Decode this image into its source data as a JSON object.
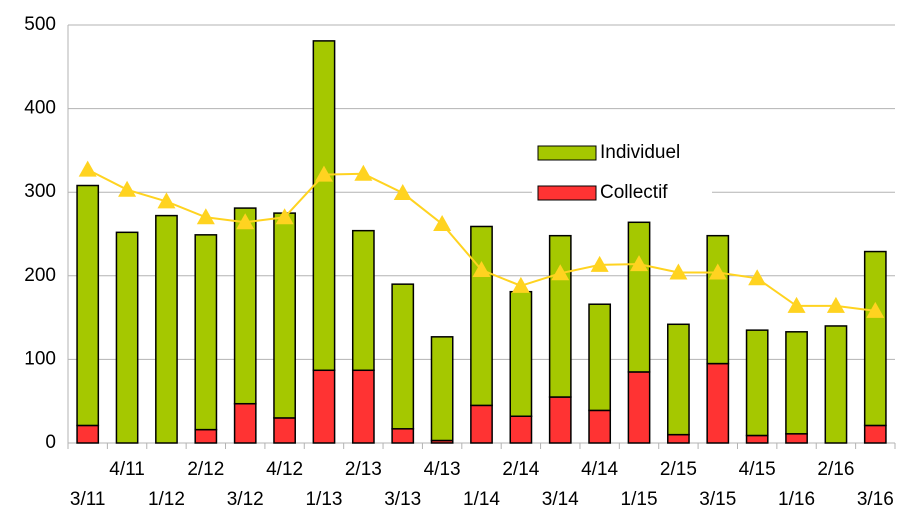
{
  "chart_data": {
    "type": "bar",
    "categories": [
      "3/11",
      "4/11",
      "1/12",
      "2/12",
      "3/12",
      "4/12",
      "1/13",
      "2/13",
      "3/13",
      "4/13",
      "1/14",
      "2/14",
      "3/14",
      "4/14",
      "1/15",
      "2/15",
      "3/15",
      "4/15",
      "1/16",
      "2/16",
      "3/16"
    ],
    "series": [
      {
        "name": "Individuel",
        "type": "bar",
        "color": "#a5c800",
        "values": [
          287,
          252,
          272,
          233,
          234,
          245,
          394,
          167,
          173,
          124,
          214,
          149,
          193,
          127,
          179,
          132,
          153,
          126,
          122,
          140,
          208
        ]
      },
      {
        "name": "Collectif",
        "type": "bar",
        "color": "#ff3333",
        "values": [
          21,
          0,
          0,
          16,
          47,
          30,
          87,
          87,
          17,
          3,
          45,
          32,
          55,
          39,
          85,
          10,
          95,
          9,
          11,
          0,
          21
        ]
      },
      {
        "type": "line",
        "color": "#ffd320",
        "values": [
          327,
          303,
          289,
          270,
          264,
          270,
          321,
          322,
          299,
          262,
          207,
          188,
          203,
          213,
          214,
          204,
          204,
          197,
          164,
          164,
          158
        ]
      }
    ],
    "stacked": true,
    "ylim": [
      0,
      500
    ],
    "yticks": [
      0,
      100,
      200,
      300,
      400,
      500
    ],
    "grid": true,
    "legend": "right"
  }
}
